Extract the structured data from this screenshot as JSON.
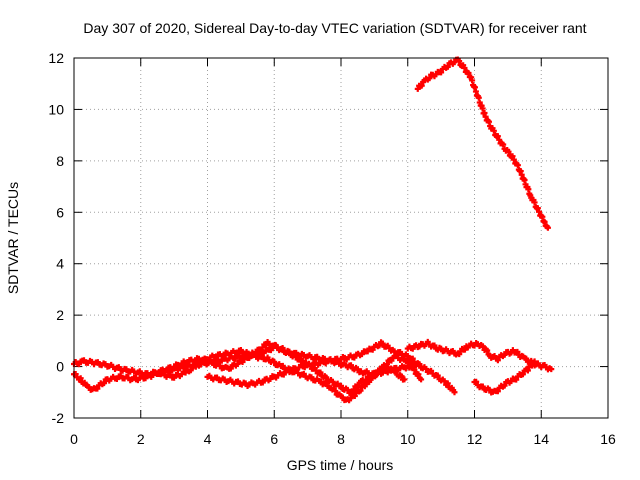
{
  "chart_data": {
    "type": "scatter",
    "title": "Day 307 of 2020, Sidereal Day-to-day VTEC variation (SDTVAR) for receiver rant",
    "xlabel": "GPS time / hours",
    "ylabel": "SDTVAR / TECUs",
    "xlim": [
      0,
      16
    ],
    "ylim": [
      -2,
      12
    ],
    "xticks": [
      0,
      2,
      4,
      6,
      8,
      10,
      12,
      14,
      16
    ],
    "yticks": [
      -2,
      0,
      2,
      4,
      6,
      8,
      10,
      12
    ],
    "grid": true,
    "marker": "plus",
    "color": "#ff0000",
    "series": [
      {
        "name": "s1",
        "x": [
          0.0,
          0.3,
          0.6,
          1.0,
          1.4,
          1.8,
          2.2,
          2.6,
          3.0,
          3.4,
          3.8,
          4.2,
          4.6,
          5.0,
          5.4,
          5.8,
          6.0,
          6.3,
          6.6,
          7.0,
          7.4,
          7.8,
          8.0,
          8.3,
          8.6,
          9.0,
          9.3,
          9.6,
          10.0,
          10.3
        ],
        "y": [
          0.1,
          0.2,
          0.15,
          0.05,
          -0.1,
          -0.2,
          -0.3,
          -0.2,
          -0.1,
          0.0,
          0.1,
          0.2,
          0.3,
          0.4,
          0.5,
          0.6,
          0.8,
          0.6,
          0.5,
          0.4,
          0.3,
          0.2,
          0.1,
          0.0,
          -0.2,
          -0.3,
          -0.2,
          -0.1,
          0.0,
          0.1
        ]
      },
      {
        "name": "s2",
        "x": [
          0.0,
          0.2,
          0.4,
          0.6,
          0.8,
          1.0,
          1.4,
          1.8,
          2.2,
          2.6,
          3.0,
          3.4,
          3.8,
          4.2,
          4.6,
          5.0,
          5.4,
          5.8,
          6.2,
          6.6,
          7.0,
          7.3,
          7.6,
          8.0,
          8.3,
          8.6,
          9.0,
          9.3,
          9.6,
          9.9
        ],
        "y": [
          -0.3,
          -0.5,
          -0.8,
          -0.9,
          -0.7,
          -0.5,
          -0.4,
          -0.5,
          -0.4,
          -0.2,
          0.0,
          0.2,
          0.3,
          0.1,
          -0.1,
          0.2,
          0.5,
          0.9,
          0.7,
          0.4,
          0.1,
          -0.2,
          -0.5,
          -0.8,
          -1.0,
          -0.6,
          -0.3,
          0.0,
          -0.2,
          -0.5
        ]
      },
      {
        "name": "s3",
        "x": [
          2.6,
          3.0,
          3.4,
          3.8,
          4.2,
          4.6,
          5.0,
          5.4,
          5.8,
          6.2,
          6.6,
          7.0,
          7.4,
          7.7,
          8.0,
          8.2,
          8.5,
          8.8,
          9.2,
          9.6,
          10.0,
          10.4
        ],
        "y": [
          -0.3,
          -0.4,
          -0.2,
          0.2,
          0.4,
          0.5,
          0.6,
          0.4,
          0.3,
          0.0,
          -0.2,
          -0.4,
          -0.6,
          -0.8,
          -1.2,
          -1.3,
          -1.0,
          -0.6,
          -0.1,
          0.4,
          0.2,
          -0.5
        ]
      },
      {
        "name": "s4",
        "x": [
          4.0,
          4.4,
          4.8,
          5.2,
          5.6,
          6.0,
          6.4,
          6.8,
          7.2,
          7.6,
          8.0,
          8.4,
          8.8,
          9.2,
          9.6,
          10.0,
          10.4,
          10.8,
          11.2,
          11.4
        ],
        "y": [
          -0.4,
          -0.5,
          -0.6,
          -0.7,
          -0.6,
          -0.4,
          -0.2,
          0.0,
          0.1,
          0.2,
          0.3,
          0.4,
          0.6,
          0.9,
          0.6,
          0.4,
          0.0,
          -0.3,
          -0.7,
          -1.0
        ]
      },
      {
        "name": "s5",
        "x": [
          10.0,
          10.3,
          10.6,
          10.9,
          11.2,
          11.5,
          11.8,
          12.1,
          12.3,
          12.5,
          12.7,
          12.9,
          13.2,
          13.5,
          13.8,
          14.1,
          14.3
        ],
        "y": [
          0.7,
          0.8,
          0.9,
          0.7,
          0.6,
          0.5,
          0.8,
          0.9,
          0.7,
          0.4,
          0.3,
          0.5,
          0.6,
          0.3,
          0.1,
          0.0,
          -0.1
        ]
      },
      {
        "name": "s6",
        "x": [
          12.0,
          12.2,
          12.4,
          12.6,
          12.8,
          13.0,
          13.2,
          13.4,
          13.6,
          13.8
        ],
        "y": [
          -0.6,
          -0.8,
          -0.9,
          -1.0,
          -0.8,
          -0.6,
          -0.5,
          -0.3,
          -0.1,
          0.2
        ]
      },
      {
        "name": "s7",
        "x": [
          10.3,
          10.5,
          10.7,
          10.9,
          11.1,
          11.3,
          11.5,
          11.7,
          11.9,
          12.1,
          12.3,
          12.5,
          12.7,
          12.9,
          13.1,
          13.3,
          13.5,
          13.7,
          13.9,
          14.1,
          14.2
        ],
        "y": [
          10.8,
          11.1,
          11.3,
          11.4,
          11.6,
          11.8,
          11.9,
          11.6,
          11.2,
          10.5,
          9.8,
          9.3,
          8.9,
          8.5,
          8.2,
          7.8,
          7.2,
          6.6,
          6.1,
          5.6,
          5.4
        ]
      }
    ]
  }
}
